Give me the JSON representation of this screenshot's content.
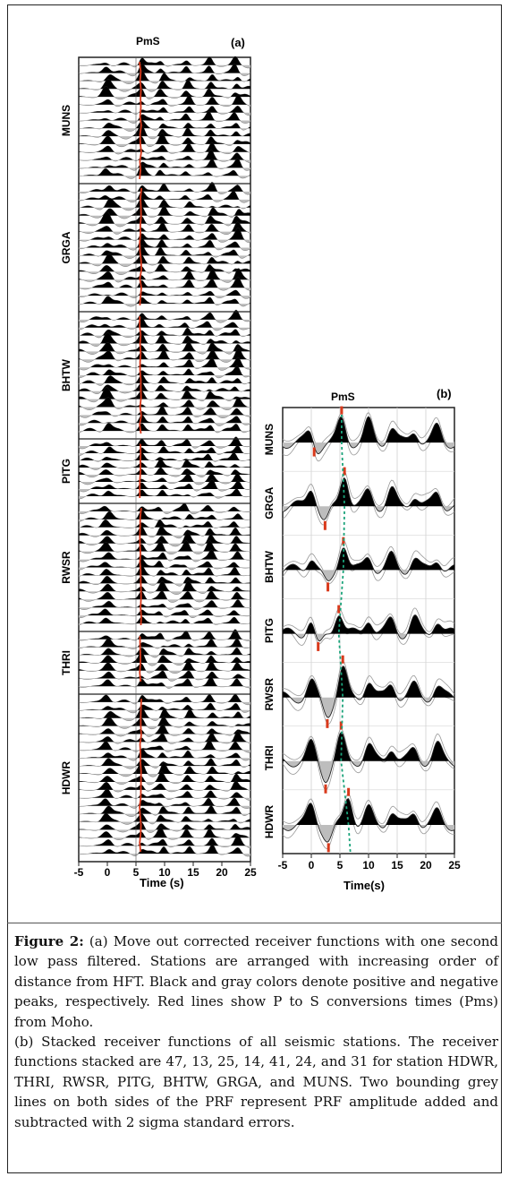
{
  "panel_a": {
    "label": "(a)",
    "phase_label": "PmS",
    "xlabel": "Time (s)",
    "xticks": [
      "-5",
      "0",
      "5",
      "10",
      "15",
      "20",
      "25"
    ],
    "stations": [
      "MUNS",
      "GRGA",
      "BHTW",
      "PITG",
      "RWSR",
      "THRI",
      "HDWR"
    ]
  },
  "panel_b": {
    "label": "(b)",
    "phase_label": "PmS",
    "xlabel": "Time(s)",
    "xticks": [
      "-5",
      "0",
      "5",
      "10",
      "15",
      "20",
      "25"
    ],
    "stations": [
      "MUNS",
      "GRGA",
      "BHTW",
      "PITG",
      "RWSR",
      "THRI",
      "HDWR"
    ]
  },
  "colors": {
    "positive": "#000000",
    "negative": "#bdbdbd",
    "moho": "#d9391b",
    "trend": "#1aa37a"
  },
  "caption": {
    "figure_label": "Figure 2:",
    "part_a": "(a) Move out corrected receiver functions with one second low pass filtered. Stations are arranged with increasing order of distance from HFT. Black and gray colors denote positive and negative peaks, respectively. Red lines show P to S conversions times (Pms) from Moho.",
    "part_b": "(b) Stacked receiver functions of all seismic stations. The receiver functions stacked are 47, 13, 25, 14, 41, 24, and 31 for station HDWR, THRI, RWSR, PITG, BHTW, GRGA, and MUNS. Two bounding grey lines on both sides of the PRF represent PRF amplitude added and subtracted with 2 sigma standard errors."
  }
}
